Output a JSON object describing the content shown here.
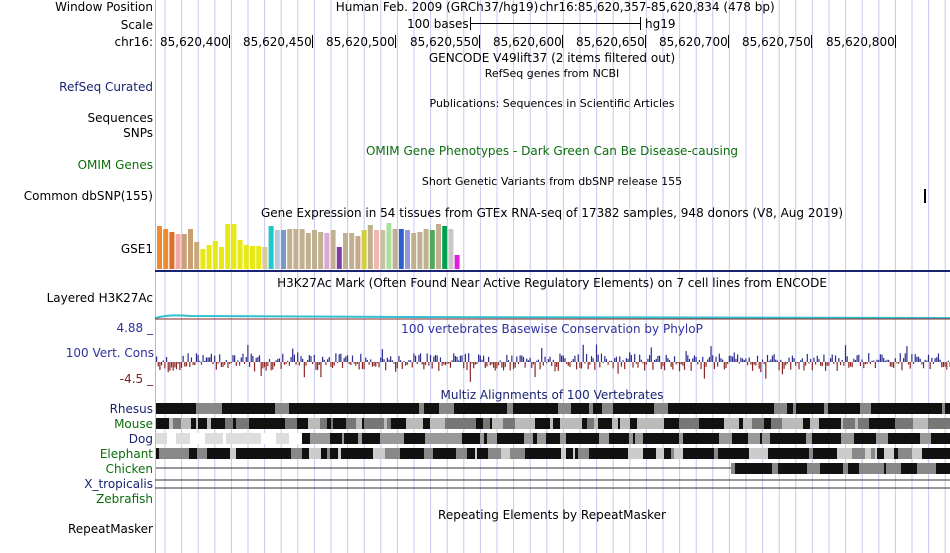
{
  "header": {
    "window_position_label": "Window Position",
    "assembly": "Human Feb. 2009 (GRCh37/hg19)",
    "position": "chr16:85,620,357-85,620,834 (478 bp)",
    "scale_label": "Scale",
    "scale_text": "100 bases",
    "scale_db": "hg19",
    "chrom_label": "chr16:",
    "ticks": [
      "85,620,400",
      "85,620,450",
      "85,620,500",
      "85,620,550",
      "85,620,600",
      "85,620,650",
      "85,620,700",
      "85,620,750",
      "85,620,800"
    ]
  },
  "tracks": {
    "gencode_title": "GENCODE V49lift37 (2 items filtered out)",
    "refseq_title": "RefSeq genes from NCBI",
    "refseq_label": "RefSeq Curated",
    "pubs_title": "Publications: Sequences in Scientific Articles",
    "pubs_label_1": "Sequences",
    "pubs_label_2": "SNPs",
    "omim_title": "OMIM Gene Phenotypes - Dark Green Can Be Disease-causing",
    "omim_label": "OMIM Genes",
    "dbsnp_title": "Short Genetic Variants from dbSNP release 155",
    "dbsnp_label": "Common dbSNP(155)",
    "gtex_title": "Gene Expression in 54 tissues from GTEx RNA-seq of 17382 samples, 948 donors (V8, Aug 2019)",
    "gtex_label": "GSE1",
    "h3k27_title": "H3K27Ac Mark (Often Found Near Active Regulatory Elements) on 7 cell lines from ENCODE",
    "h3k27_label": "Layered H3K27Ac",
    "cons_title": "100 vertebrates Basewise Conservation by PhyloP",
    "cons_label": "100 Vert. Cons",
    "cons_max": "4.88 _",
    "cons_min": "-4.5 _",
    "multiz_title": "Multiz Alignments of 100 Vertebrates",
    "species": [
      "Rhesus",
      "Mouse",
      "Dog",
      "Elephant",
      "Chicken",
      "X_tropicalis",
      "Zebrafish"
    ],
    "repeat_title": "Repeating Elements by RepeatMasker",
    "repeat_label": "RepeatMasker"
  },
  "colors": {
    "navy": "#1a2370",
    "green": "#0b6e0b",
    "grid": "#c8c8f0",
    "cons_pos": "#2b2b8c",
    "cons_neg": "#8b2525"
  },
  "gtex_bars": {
    "colors": [
      "#f08a30",
      "#f08a30",
      "#e06e2a",
      "#f0a8a8",
      "#c7a07a",
      "#c8a070",
      "#c9a880",
      "#e8e814",
      "#e8e814",
      "#e8e814",
      "#e8e814",
      "#e8e814",
      "#e8e814",
      "#e8e814",
      "#e8e814",
      "#e8e814",
      "#e8e814",
      "#d8c8a0",
      "#20c8c8",
      "#b8c8d8",
      "#7a98c8",
      "#c0b090",
      "#c0b090",
      "#c0b090",
      "#c0b090",
      "#c0b090",
      "#c0b090",
      "#d8a8d8",
      "#c0b090",
      "#803da0",
      "#c0b090",
      "#c0b090",
      "#c8a888",
      "#cfcf40",
      "#c0b090",
      "#f0b8b0",
      "#c8c0a0",
      "#a8e0a0",
      "#c0b090",
      "#3060d0",
      "#9898d8",
      "#c0b090",
      "#c0b090",
      "#c0b090",
      "#50a858",
      "#c0b090",
      "#00a050",
      "#c8c8c8",
      "#e020e0"
    ],
    "values": [
      0.93,
      0.86,
      0.8,
      0.77,
      0.75,
      0.86,
      0.58,
      0.43,
      0.53,
      0.6,
      0.48,
      0.98,
      0.98,
      0.63,
      0.53,
      0.5,
      0.5,
      0.47,
      0.93,
      0.84,
      0.84,
      0.88,
      0.88,
      0.88,
      0.78,
      0.84,
      0.8,
      0.79,
      0.84,
      0.48,
      0.78,
      0.78,
      0.72,
      0.84,
      0.96,
      0.84,
      0.84,
      1.0,
      0.86,
      0.88,
      0.84,
      0.79,
      0.8,
      0.87,
      0.84,
      0.98,
      0.93,
      0.88,
      0.3
    ]
  }
}
